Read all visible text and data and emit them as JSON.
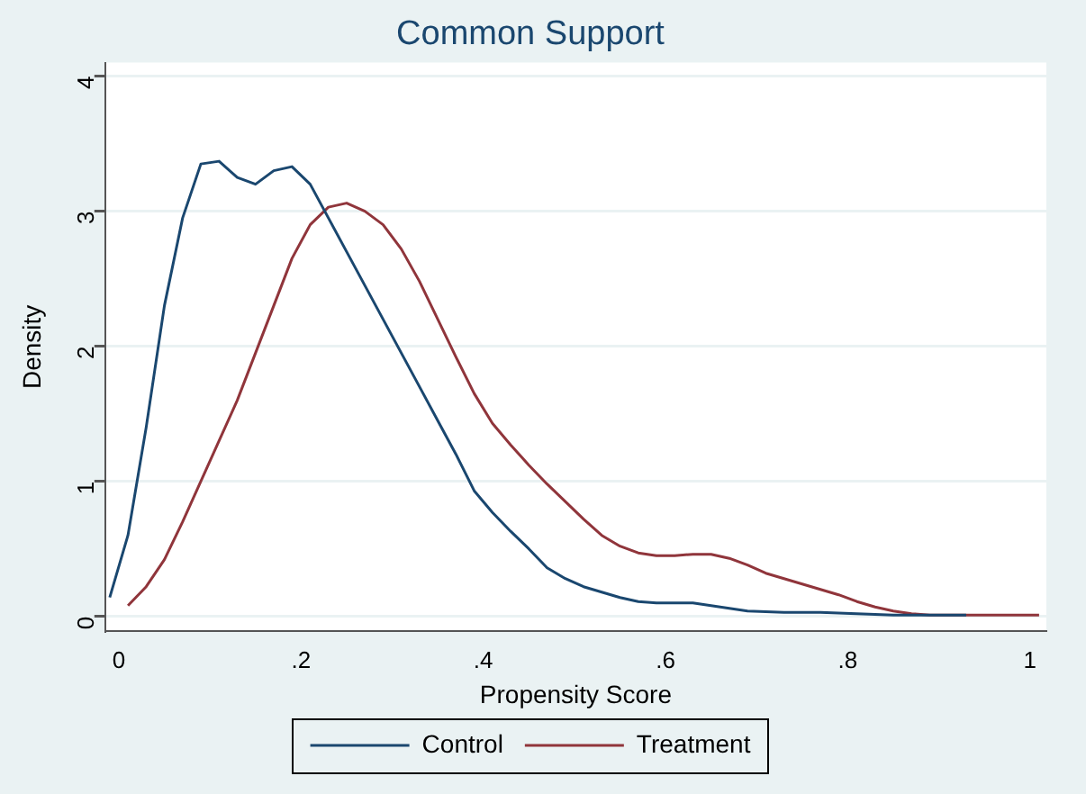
{
  "chart_data": {
    "type": "line",
    "title": "Common Support",
    "xlabel": "Propensity Score",
    "ylabel": "Density",
    "xlim": [
      -0.015,
      1.018
    ],
    "ylim": [
      -0.11,
      4.1
    ],
    "xticks": [
      {
        "value": 0,
        "label": "0"
      },
      {
        "value": 0.2,
        "label": ".2"
      },
      {
        "value": 0.4,
        "label": ".4"
      },
      {
        "value": 0.6,
        "label": ".6"
      },
      {
        "value": 0.8,
        "label": ".8"
      },
      {
        "value": 1,
        "label": "1"
      }
    ],
    "yticks": [
      0,
      1,
      2,
      3,
      4
    ],
    "grid": "y",
    "legend": "bottom",
    "marker": "none",
    "line_style": "solid",
    "series": [
      {
        "name": "Control",
        "color": "#1a476f",
        "x": [
          -0.01,
          0.01,
          0.03,
          0.05,
          0.07,
          0.09,
          0.11,
          0.13,
          0.15,
          0.17,
          0.19,
          0.21,
          0.23,
          0.25,
          0.27,
          0.29,
          0.31,
          0.33,
          0.35,
          0.37,
          0.39,
          0.41,
          0.43,
          0.45,
          0.47,
          0.49,
          0.51,
          0.53,
          0.55,
          0.57,
          0.59,
          0.61,
          0.63,
          0.65,
          0.67,
          0.69,
          0.73,
          0.77,
          0.81,
          0.85,
          0.89,
          0.93
        ],
        "values": [
          0.14,
          0.6,
          1.4,
          2.3,
          2.95,
          3.35,
          3.37,
          3.25,
          3.2,
          3.3,
          3.33,
          3.2,
          2.95,
          2.7,
          2.45,
          2.2,
          1.95,
          1.7,
          1.45,
          1.2,
          0.93,
          0.77,
          0.63,
          0.5,
          0.36,
          0.28,
          0.22,
          0.18,
          0.14,
          0.11,
          0.1,
          0.1,
          0.1,
          0.08,
          0.06,
          0.04,
          0.03,
          0.03,
          0.02,
          0.01,
          0.01,
          0.01
        ]
      },
      {
        "name": "Treatment",
        "color": "#90353b",
        "x": [
          0.01,
          0.03,
          0.05,
          0.07,
          0.09,
          0.11,
          0.13,
          0.15,
          0.17,
          0.19,
          0.21,
          0.23,
          0.25,
          0.27,
          0.29,
          0.31,
          0.33,
          0.35,
          0.37,
          0.39,
          0.41,
          0.43,
          0.45,
          0.47,
          0.49,
          0.51,
          0.53,
          0.55,
          0.57,
          0.59,
          0.61,
          0.63,
          0.65,
          0.67,
          0.69,
          0.71,
          0.73,
          0.75,
          0.77,
          0.79,
          0.81,
          0.83,
          0.85,
          0.87,
          0.89,
          0.93,
          0.97,
          1.01
        ],
        "values": [
          0.08,
          0.22,
          0.42,
          0.7,
          1.0,
          1.3,
          1.6,
          1.95,
          2.3,
          2.65,
          2.9,
          3.03,
          3.06,
          3.0,
          2.9,
          2.72,
          2.48,
          2.2,
          1.92,
          1.65,
          1.43,
          1.27,
          1.12,
          0.98,
          0.85,
          0.72,
          0.6,
          0.52,
          0.47,
          0.45,
          0.45,
          0.46,
          0.46,
          0.43,
          0.38,
          0.32,
          0.28,
          0.24,
          0.2,
          0.16,
          0.11,
          0.07,
          0.04,
          0.02,
          0.01,
          0.01,
          0.01,
          0.01
        ]
      }
    ]
  }
}
